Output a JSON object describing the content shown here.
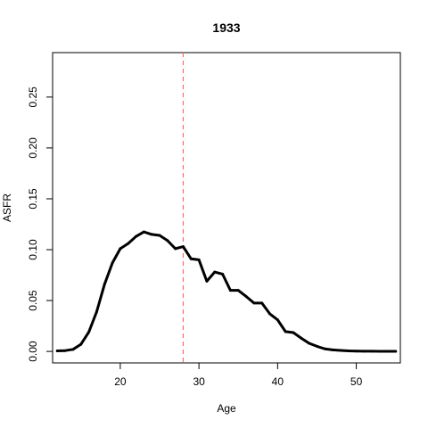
{
  "chart_data": {
    "type": "line",
    "title": "1933",
    "xlabel": "Age",
    "ylabel": "ASFR",
    "xlim": [
      11.4,
      55.6
    ],
    "ylim": [
      -0.0113,
      0.2937
    ],
    "x_ticks": [
      20,
      30,
      40,
      50
    ],
    "y_ticks": [
      0.0,
      0.05,
      0.1,
      0.15,
      0.2,
      0.25
    ],
    "x_tick_labels": [
      "20",
      "30",
      "40",
      "50"
    ],
    "y_tick_labels": [
      "0.00",
      "0.05",
      "0.10",
      "0.15",
      "0.20",
      "0.25"
    ],
    "grid": false,
    "series": [
      {
        "color": "#000000",
        "x": [
          12,
          13,
          14,
          15,
          16,
          17,
          18,
          19,
          20,
          21,
          22,
          23,
          24,
          25,
          26,
          27,
          28,
          29,
          30,
          31,
          32,
          33,
          34,
          35,
          36,
          37,
          38,
          39,
          40,
          41,
          42,
          43,
          44,
          45,
          46,
          47,
          48,
          49,
          50,
          51,
          52,
          53,
          54,
          55
        ],
        "values": [
          0.0005,
          0.0008,
          0.002,
          0.007,
          0.019,
          0.039,
          0.066,
          0.087,
          0.101,
          0.106,
          0.113,
          0.1175,
          0.115,
          0.114,
          0.109,
          0.101,
          0.103,
          0.091,
          0.09,
          0.069,
          0.078,
          0.076,
          0.06,
          0.06,
          0.054,
          0.0475,
          0.0475,
          0.037,
          0.031,
          0.0195,
          0.0185,
          0.013,
          0.008,
          0.005,
          0.0025,
          0.0015,
          0.001,
          0.0005,
          0.0003,
          0.0002,
          0.0002,
          0.0001,
          0.0001,
          0.0001
        ]
      }
    ],
    "reference_line": {
      "orientation": "vertical",
      "x": 28,
      "color": "#ff6b6b",
      "style": "dashed"
    }
  }
}
